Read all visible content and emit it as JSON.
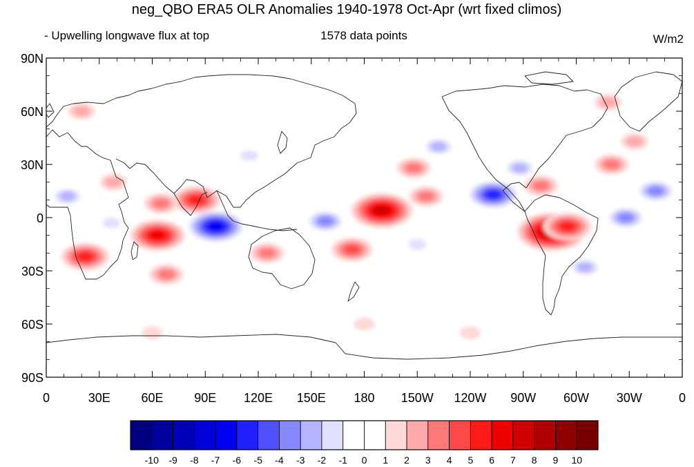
{
  "chart_data": {
    "type": "heatmap",
    "title": "neg_QBO ERA5 OLR Anomalies 1940-1978 Oct-Apr (wrt fixed climos)",
    "left_subtitle": "- Upwelling longwave flux at top",
    "center_subtitle": "1578 data points",
    "units": "W/m2",
    "map_projection": "cylindrical equidistant, 0 to 360 longitude",
    "x_ticks": [
      "0",
      "30E",
      "60E",
      "90E",
      "120E",
      "150E",
      "180",
      "150W",
      "120W",
      "90W",
      "60W",
      "30W",
      "0"
    ],
    "y_ticks": [
      "90N",
      "60N",
      "30N",
      "0",
      "30S",
      "60S",
      "90S"
    ],
    "xlim": [
      0,
      360
    ],
    "ylim": [
      -90,
      90
    ],
    "colorbar": {
      "labels": [
        "-10",
        "-9",
        "-8",
        "-7",
        "-6",
        "-5",
        "-4",
        "-3",
        "-2",
        "-1",
        "0",
        "1",
        "2",
        "3",
        "4",
        "5",
        "6",
        "7",
        "8",
        "9",
        "10"
      ],
      "colors": [
        "#000080",
        "#00009a",
        "#0000b8",
        "#0000d8",
        "#0000f5",
        "#2020ff",
        "#5050ff",
        "#8888ff",
        "#b4b4ff",
        "#e0e0ff",
        "#ffffff",
        "#ffffff",
        "#ffd8d8",
        "#ffaaaa",
        "#ff7878",
        "#ff4848",
        "#ff1a1a",
        "#f00000",
        "#d00000",
        "#b00000",
        "#900000",
        "#780000"
      ]
    },
    "anomalies": [
      {
        "name": "central Pacific positive",
        "lon": 190,
        "lat": 4,
        "value": 7
      },
      {
        "name": "western Pacific positive",
        "lon": 215,
        "lat": 12,
        "value": 3
      },
      {
        "name": "Indian Ocean negative",
        "lon": 96,
        "lat": -5,
        "value": -7
      },
      {
        "name": "western Indian Ocean positive",
        "lon": 63,
        "lat": -10,
        "value": 6
      },
      {
        "name": "Bay of Bengal positive",
        "lon": 85,
        "lat": 10,
        "value": 5
      },
      {
        "name": "South Asia positive",
        "lon": 65,
        "lat": 8,
        "value": 3
      },
      {
        "name": "southern Africa positive",
        "lon": 22,
        "lat": -22,
        "value": 5
      },
      {
        "name": "south Indian Ocean positive",
        "lon": 68,
        "lat": -32,
        "value": 3
      },
      {
        "name": "Congo negative",
        "lon": 37,
        "lat": -3,
        "value": -2
      },
      {
        "name": "West Africa negative",
        "lon": 12,
        "lat": 12,
        "value": -3
      },
      {
        "name": "Melanesia negative",
        "lon": 158,
        "lat": -2,
        "value": -4
      },
      {
        "name": "South Pacific positive",
        "lon": 173,
        "lat": -18,
        "value": 4
      },
      {
        "name": "northern Australia positive",
        "lon": 125,
        "lat": -20,
        "value": 3
      },
      {
        "name": "eastern Pacific negative",
        "lon": 253,
        "lat": 13,
        "value": -6
      },
      {
        "name": "Gulf of Mexico negative",
        "lon": 268,
        "lat": 28,
        "value": -3
      },
      {
        "name": "North Pacific negative",
        "lon": 222,
        "lat": 40,
        "value": -3
      },
      {
        "name": "North Pacific positive",
        "lon": 208,
        "lat": 28,
        "value": 3
      },
      {
        "name": "Andes positive",
        "lon": 286,
        "lat": -8,
        "value": 8
      },
      {
        "name": "Amazon positive",
        "lon": 295,
        "lat": -5,
        "value": 5
      },
      {
        "name": "Caribbean positive",
        "lon": 280,
        "lat": 18,
        "value": 3
      },
      {
        "name": "equatorial Atlantic negative",
        "lon": 328,
        "lat": 0,
        "value": -4
      },
      {
        "name": "tropical Atlantic negative",
        "lon": 345,
        "lat": 15,
        "value": -4
      },
      {
        "name": "southeastern South America negative",
        "lon": 305,
        "lat": -28,
        "value": -3
      },
      {
        "name": "North Atlantic positive",
        "lon": 320,
        "lat": 30,
        "value": 3
      },
      {
        "name": "North Atlantic positive 2",
        "lon": 333,
        "lat": 43,
        "value": 2
      },
      {
        "name": "Greenland positive",
        "lon": 318,
        "lat": 65,
        "value": 2
      },
      {
        "name": "Arabia positive",
        "lon": 38,
        "lat": 20,
        "value": 2
      },
      {
        "name": "Europe positive",
        "lon": 20,
        "lat": 60,
        "value": 2
      },
      {
        "name": "Siberia negative",
        "lon": 115,
        "lat": 35,
        "value": -2
      },
      {
        "name": "South Pacific negative",
        "lon": 210,
        "lat": -15,
        "value": -2
      },
      {
        "name": "Southern Ocean positive",
        "lon": 60,
        "lat": -65,
        "value": 1
      },
      {
        "name": "Southern Ocean positive 2",
        "lon": 180,
        "lat": -60,
        "value": 1
      },
      {
        "name": "Southern Ocean positive 3",
        "lon": 240,
        "lat": -65,
        "value": 1
      }
    ],
    "grid": false,
    "legend": "bottom-center colorbar"
  }
}
